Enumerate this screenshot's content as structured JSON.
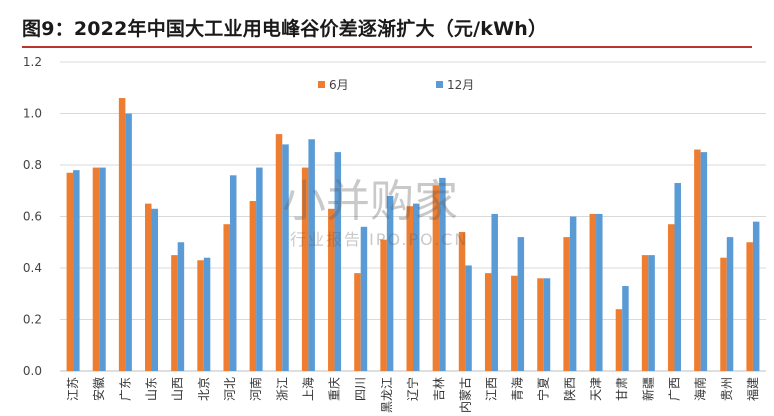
{
  "title": "图9：2022年中国大工业用电峰谷价差逐渐扩大（元/kWh）",
  "watermark": {
    "main": "小并购家",
    "sub": "行业报告 IPO.PO.CN"
  },
  "colors": {
    "series_jun": "#ED7D31",
    "series_dec": "#5B9BD5",
    "title_rule": "#b8352c"
  },
  "chart_data": {
    "type": "bar",
    "title": "",
    "xlabel": "",
    "ylabel": "",
    "ylim": [
      0,
      1.2
    ],
    "yticks": [
      "0.0",
      "0.2",
      "0.4",
      "0.6",
      "0.8",
      "1.0",
      "1.2"
    ],
    "grid": true,
    "legend": "top-center",
    "categories": [
      "江苏",
      "安徽",
      "广东",
      "山东",
      "山西",
      "北京",
      "河北",
      "河南",
      "浙江",
      "上海",
      "重庆",
      "四川",
      "黑龙江",
      "辽宁",
      "吉林",
      "内蒙古",
      "江西",
      "青海",
      "宁夏",
      "陕西",
      "天津",
      "甘肃",
      "新疆",
      "广西",
      "海南",
      "贵州",
      "福建"
    ],
    "series": [
      {
        "name": "6月",
        "values": [
          0.77,
          0.79,
          1.06,
          0.65,
          0.45,
          0.43,
          0.57,
          0.66,
          0.92,
          0.79,
          0.63,
          0.38,
          0.51,
          0.64,
          0.72,
          0.54,
          0.38,
          0.37,
          0.36,
          0.52,
          0.61,
          0.24,
          0.45,
          0.57,
          0.86,
          0.44,
          0.5
        ]
      },
      {
        "name": "12月",
        "values": [
          0.78,
          0.79,
          1.0,
          0.63,
          0.5,
          0.44,
          0.76,
          0.79,
          0.88,
          0.9,
          0.85,
          0.56,
          0.68,
          0.65,
          0.75,
          0.41,
          0.61,
          0.52,
          0.36,
          0.6,
          0.61,
          0.33,
          0.45,
          0.73,
          0.85,
          0.52,
          0.58
        ]
      }
    ]
  }
}
